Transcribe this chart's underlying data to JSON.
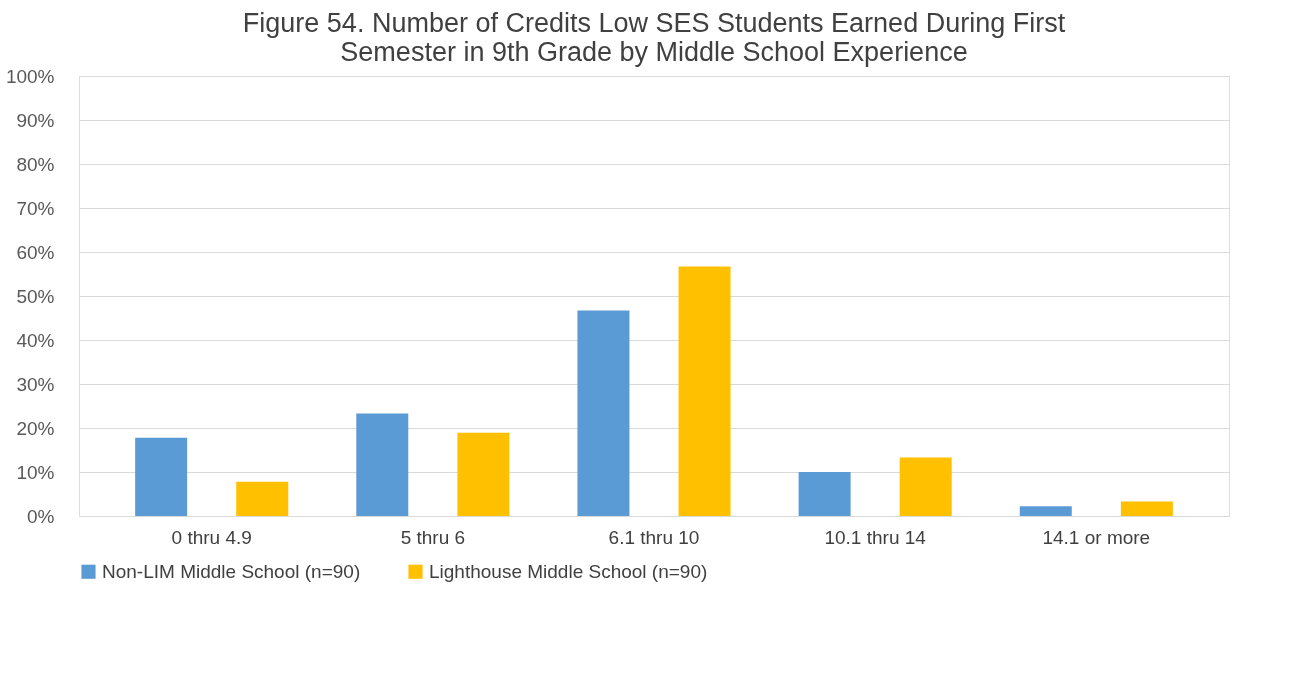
{
  "chart_data": {
    "type": "bar",
    "title": "Figure 54. Number of Credits Low SES Students Earned During First Semester in 9th Grade by Middle School Experience",
    "categories": [
      "0 thru 4.9",
      "5 thru 6",
      "6.1 thru 10",
      "10.1 thru 14",
      "14.1 or  more"
    ],
    "series": [
      {
        "name": "Non-LIM Middle School  (n=90)",
        "color": "#5b9bd5",
        "values": [
          17.8,
          23.3,
          46.7,
          10.0,
          2.2
        ]
      },
      {
        "name": "Lighthouse Middle School (n=90)",
        "color": "#ffc000",
        "values": [
          7.8,
          18.9,
          56.7,
          13.3,
          3.3
        ]
      }
    ],
    "ylim": [
      0,
      100
    ],
    "yticks": [
      {
        "value": 0,
        "label": "0%"
      },
      {
        "value": 10,
        "label": "10%"
      },
      {
        "value": 20,
        "label": "20%"
      },
      {
        "value": 30,
        "label": "30%"
      },
      {
        "value": 40,
        "label": "40%"
      },
      {
        "value": 50,
        "label": "50%"
      },
      {
        "value": 60,
        "label": "60%"
      },
      {
        "value": 70,
        "label": "70%"
      },
      {
        "value": 80,
        "label": "80%"
      },
      {
        "value": 90,
        "label": "90%"
      },
      {
        "value": 100,
        "label": "100%"
      }
    ],
    "grid": "y",
    "legend": "bottom"
  }
}
